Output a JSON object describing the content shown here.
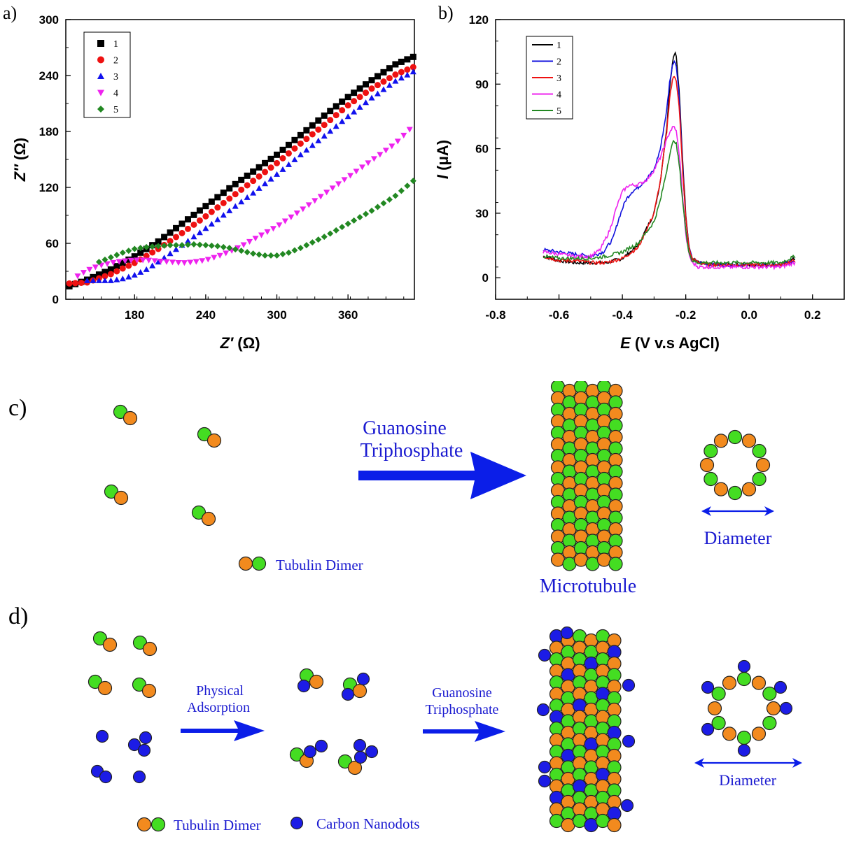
{
  "colors": {
    "green": "#44dd22",
    "orange": "#f28a1e",
    "blue": "#1c1ce6",
    "label_blue": "#1a1ad0",
    "arrow_blue": "#0b1ee8"
  },
  "chart_data": [
    {
      "panel_label": "a)",
      "type": "scatter",
      "xlabel_main": "Z′",
      "xlabel_unit": " (Ω)",
      "ylabel_main": "Z″",
      "ylabel_unit": " (Ω)",
      "xlim": [
        122,
        416
      ],
      "ylim": [
        0,
        300
      ],
      "xticks": [
        180,
        240,
        300,
        360
      ],
      "yticks": [
        0,
        60,
        120,
        180,
        240,
        300
      ],
      "legend_position": "top-left",
      "series": [
        {
          "name": "1",
          "color": "#000000",
          "marker": "square",
          "x": [
            125,
            140,
            160,
            180,
            200,
            220,
            240,
            260,
            280,
            300,
            320,
            340,
            360,
            380,
            400,
            415
          ],
          "y": [
            14,
            21,
            32,
            46,
            62,
            81,
            100,
            119,
            137,
            155,
            176,
            197,
            217,
            235,
            252,
            260
          ]
        },
        {
          "name": "2",
          "color": "#ee1111",
          "marker": "circle",
          "x": [
            125,
            140,
            160,
            180,
            200,
            220,
            240,
            260,
            280,
            300,
            320,
            340,
            360,
            380,
            400,
            415
          ],
          "y": [
            17,
            18,
            27,
            39,
            54,
            71,
            89,
            108,
            127,
            146,
            167,
            187,
            208,
            226,
            241,
            249
          ]
        },
        {
          "name": "3",
          "color": "#1111ee",
          "marker": "triangle-up",
          "x": [
            140,
            150,
            160,
            170,
            180,
            190,
            200,
            220,
            240,
            260,
            280,
            300,
            320,
            340,
            360,
            380,
            400,
            415
          ],
          "y": [
            20,
            20,
            20,
            22,
            26,
            32,
            40,
            58,
            76,
            95,
            114,
            134,
            155,
            175,
            196,
            216,
            234,
            244
          ]
        },
        {
          "name": "4",
          "color": "#ee22ee",
          "marker": "triangle-down",
          "x": [
            132,
            140,
            150,
            160,
            170,
            180,
            190,
            200,
            210,
            220,
            230,
            240,
            250,
            260,
            270,
            280,
            290,
            300,
            320,
            340,
            360,
            380,
            400,
            415
          ],
          "y": [
            25,
            31,
            36,
            39,
            41,
            42,
            42,
            41,
            40,
            39,
            40,
            42,
            46,
            51,
            57,
            64,
            71,
            78,
            95,
            113,
            131,
            149,
            167,
            186
          ]
        },
        {
          "name": "5",
          "color": "#228822",
          "marker": "diamond",
          "x": [
            150,
            160,
            170,
            180,
            190,
            200,
            210,
            220,
            230,
            240,
            250,
            260,
            270,
            280,
            290,
            300,
            310,
            320,
            340,
            360,
            380,
            400,
            415
          ],
          "y": [
            40,
            45,
            50,
            54,
            56,
            57,
            58,
            58,
            59,
            58,
            57,
            55,
            52,
            49,
            47,
            47,
            50,
            55,
            67,
            81,
            95,
            111,
            127
          ]
        }
      ]
    },
    {
      "panel_label": "b)",
      "type": "line",
      "xlabel_main": "E",
      "xlabel_unit": "  (V v.s AgCl)",
      "ylabel_main": "I",
      "ylabel_unit": " (μA)",
      "xlim": [
        -0.8,
        0.3
      ],
      "ylim": [
        -10,
        120
      ],
      "xticks": [
        -0.8,
        -0.6,
        -0.4,
        -0.2,
        0.0,
        0.2
      ],
      "xtick_labels": [
        "-0.8",
        "-0.6",
        "-0.4",
        "-0.2",
        "0.0",
        "0.2"
      ],
      "yticks": [
        0,
        30,
        60,
        90,
        120
      ],
      "legend_position": "top-left",
      "series": [
        {
          "name": "1",
          "color": "#000000",
          "x": [
            -0.65,
            -0.6,
            -0.55,
            -0.5,
            -0.45,
            -0.4,
            -0.35,
            -0.3,
            -0.28,
            -0.26,
            -0.25,
            -0.24,
            -0.235,
            -0.23,
            -0.22,
            -0.21,
            -0.2,
            -0.19,
            -0.18,
            -0.16,
            -0.12,
            -0.05,
            0.0,
            0.05,
            0.1,
            0.145
          ],
          "y": [
            10,
            8,
            7,
            7,
            7,
            9,
            15,
            30,
            45,
            70,
            90,
            102,
            105,
            103,
            85,
            55,
            30,
            15,
            9,
            7,
            6,
            6,
            6,
            6,
            6,
            9
          ]
        },
        {
          "name": "2",
          "color": "#1111dd",
          "x": [
            -0.65,
            -0.6,
            -0.55,
            -0.5,
            -0.46,
            -0.43,
            -0.41,
            -0.39,
            -0.37,
            -0.35,
            -0.33,
            -0.3,
            -0.28,
            -0.26,
            -0.25,
            -0.24,
            -0.235,
            -0.23,
            -0.22,
            -0.21,
            -0.2,
            -0.19,
            -0.18,
            -0.16,
            -0.12,
            -0.05,
            0.0,
            0.05,
            0.1,
            0.145
          ],
          "y": [
            13,
            12,
            11,
            10,
            12,
            18,
            28,
            36,
            40,
            42,
            45,
            50,
            60,
            78,
            92,
            100,
            101,
            99,
            83,
            52,
            28,
            14,
            9,
            7,
            6,
            6,
            6,
            6,
            6,
            8
          ]
        },
        {
          "name": "3",
          "color": "#ee1111",
          "x": [
            -0.65,
            -0.6,
            -0.55,
            -0.5,
            -0.45,
            -0.4,
            -0.35,
            -0.3,
            -0.28,
            -0.26,
            -0.25,
            -0.24,
            -0.235,
            -0.23,
            -0.22,
            -0.21,
            -0.2,
            -0.19,
            -0.18,
            -0.16,
            -0.12,
            -0.05,
            0.0,
            0.05,
            0.1,
            0.145
          ],
          "y": [
            10,
            8,
            8,
            7,
            7,
            9,
            14,
            30,
            45,
            68,
            85,
            93,
            94,
            92,
            78,
            50,
            28,
            14,
            9,
            7,
            6,
            6,
            6,
            6,
            6,
            8
          ]
        },
        {
          "name": "4",
          "color": "#ee22ee",
          "x": [
            -0.65,
            -0.6,
            -0.55,
            -0.5,
            -0.47,
            -0.44,
            -0.42,
            -0.4,
            -0.38,
            -0.36,
            -0.34,
            -0.32,
            -0.3,
            -0.28,
            -0.26,
            -0.25,
            -0.24,
            -0.235,
            -0.23,
            -0.22,
            -0.21,
            -0.2,
            -0.19,
            -0.18,
            -0.16,
            -0.12,
            -0.05,
            0.0,
            0.05,
            0.1,
            0.145
          ],
          "y": [
            12,
            11,
            10,
            10,
            13,
            22,
            32,
            40,
            43,
            43,
            44,
            46,
            50,
            56,
            64,
            68,
            70,
            70,
            68,
            57,
            38,
            20,
            11,
            7,
            5,
            5,
            5,
            5,
            5,
            5,
            7
          ]
        },
        {
          "name": "5",
          "color": "#228822",
          "x": [
            -0.65,
            -0.6,
            -0.55,
            -0.5,
            -0.45,
            -0.4,
            -0.35,
            -0.3,
            -0.28,
            -0.26,
            -0.25,
            -0.24,
            -0.235,
            -0.23,
            -0.22,
            -0.21,
            -0.2,
            -0.19,
            -0.18,
            -0.16,
            -0.12,
            -0.05,
            0.0,
            0.05,
            0.1,
            0.145
          ],
          "y": [
            10,
            9,
            9,
            9,
            10,
            12,
            16,
            26,
            36,
            50,
            58,
            63,
            64,
            62,
            52,
            36,
            22,
            12,
            8,
            7,
            7,
            7,
            7,
            7,
            7,
            10
          ]
        }
      ]
    }
  ],
  "panel_c": {
    "label": "c)",
    "arrow_label_line1": "Guanosine",
    "arrow_label_line2": "Triphosphate",
    "legend_label": "Tubulin Dimer",
    "tube_label": "Microtubule",
    "diameter_label": "Diameter"
  },
  "panel_d": {
    "label": "d)",
    "arrow1_line1": "Physical",
    "arrow1_line2": "Adsorption",
    "arrow2_line1": "Guanosine",
    "arrow2_line2": "Triphosphate",
    "legend_dimer": "Tubulin Dimer",
    "legend_dots": "Carbon Nanodots",
    "diameter_label": "Diameter"
  }
}
